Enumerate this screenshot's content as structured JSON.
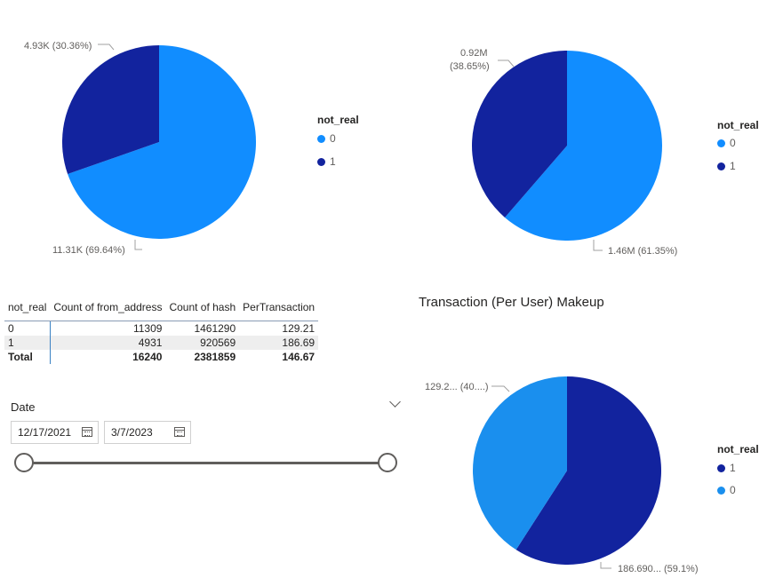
{
  "colors": {
    "light": "#118dff",
    "dark": "#12239e",
    "light3": "#1a8fee",
    "dark3": "#12239e"
  },
  "chart_data": [
    {
      "type": "pie",
      "legend_title": "not_real",
      "slices": [
        {
          "name": "0",
          "value": 11310,
          "label": "11.31K (69.64%)"
        },
        {
          "name": "1",
          "value": 4930,
          "label": "4.93K (30.36%)"
        }
      ]
    },
    {
      "type": "pie",
      "legend_title": "not_real",
      "slices": [
        {
          "name": "0",
          "value": 1460000,
          "label": "1.46M (61.35%)"
        },
        {
          "name": "1",
          "value": 920000,
          "label_line1": "0.92M",
          "label_line2": "(38.65%)"
        }
      ]
    },
    {
      "type": "pie",
      "title": "Transaction (Per User) Makeup",
      "legend_title": "not_real",
      "slices": [
        {
          "name": "1",
          "value": 186.69,
          "label": "186.690... (59.1%)"
        },
        {
          "name": "0",
          "value": 129.21,
          "label": "129.2... (40....)"
        }
      ]
    }
  ],
  "table": {
    "headers": [
      "not_real",
      "Count of from_address",
      "Count of hash",
      "PerTransaction"
    ],
    "rows": [
      [
        "0",
        "11309",
        "1461290",
        "129.21"
      ],
      [
        "1",
        "4931",
        "920569",
        "186.69"
      ]
    ],
    "total": [
      "Total",
      "16240",
      "2381859",
      "146.67"
    ]
  },
  "slicer": {
    "title": "Date",
    "start": "12/17/2021",
    "end": "3/7/2023"
  }
}
